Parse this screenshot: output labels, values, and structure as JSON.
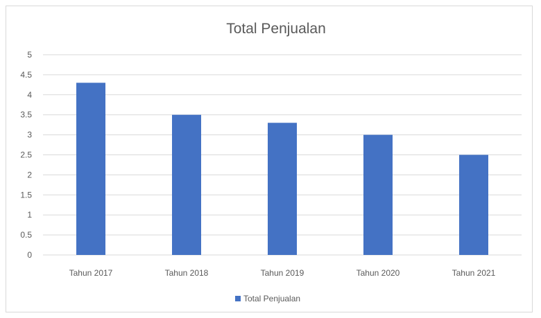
{
  "chart_data": {
    "type": "bar",
    "title": "Total Penjualan",
    "xlabel": "",
    "ylabel": "",
    "categories": [
      "Tahun 2017",
      "Tahun 2018",
      "Tahun 2019",
      "Tahun 2020",
      "Tahun 2021"
    ],
    "series": [
      {
        "name": "Total Penjualan",
        "values": [
          4.3,
          3.5,
          3.3,
          3.0,
          2.5
        ],
        "color": "#4472c4"
      }
    ],
    "ylim": [
      0,
      5
    ],
    "yticks": [
      "0",
      "0.5",
      "1",
      "1.5",
      "2",
      "2.5",
      "3",
      "3.5",
      "4",
      "4.5",
      "5"
    ],
    "ytick_values": [
      0,
      0.5,
      1,
      1.5,
      2,
      2.5,
      3,
      3.5,
      4,
      4.5,
      5
    ],
    "grid": true,
    "legend_position": "bottom",
    "colors": {
      "bar": "#4472c4",
      "grid": "#d9d9d9",
      "text": "#595959",
      "border": "#d9d9d9"
    }
  }
}
